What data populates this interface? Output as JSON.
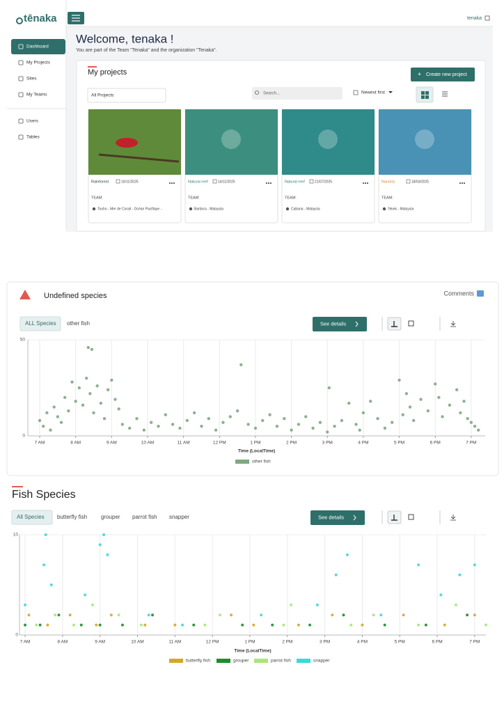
{
  "dashboard": {
    "logo": "tēnaka",
    "user": "tenaka",
    "nav": [
      "Dashboard",
      "My Projects",
      "Sites",
      "My Teams",
      "Users",
      "Tables"
    ],
    "welcome": "Welcome, tenaka !",
    "subtitle": "You are part of the Team \"Tenaka\" and the organization \"Tenaka\".",
    "section": "My projects",
    "create": "Create new project",
    "filter": "All Projects",
    "search": "Search...",
    "sort": "Newest first",
    "projects": [
      {
        "category": "Rainforest",
        "color": "#1f3b35",
        "date": "16/11/2025",
        "team": "TEAM:",
        "location": "Touho - Mer de Corail - Océan Pacifique -"
      },
      {
        "category": "Natural reef",
        "color": "#2f7d78",
        "date": "14/11/2025",
        "team": "TEAM:",
        "location": "Barbora - Malaysia"
      },
      {
        "category": "Natural reef",
        "color": "#2f7d78",
        "date": "21/07/2025",
        "team": "TEAM:",
        "location": "Cabana - Malaysia"
      },
      {
        "category": "Nursery",
        "color": "#e07b2a",
        "date": "18/03/2025",
        "team": "TEAM:",
        "location": "Tekek - Malaysia"
      }
    ]
  },
  "panels": [
    {
      "title": "Undefined species",
      "comments": "Comments",
      "filters": [
        "ALL Species",
        "other fish"
      ],
      "details": "See details"
    },
    {
      "title": "Fish Species",
      "filters": [
        "All Species",
        "butterfly fish",
        "grouper",
        "parrot fish",
        "snapper"
      ],
      "details": "See details"
    }
  ],
  "chart_data": [
    {
      "type": "scatter",
      "x_label": "Time (LocalTime)",
      "grid": true,
      "xlim": [
        6.67,
        19.39
      ],
      "xticks": [
        {
          "value": 7,
          "label": "7 AM"
        },
        {
          "value": 8,
          "label": "8 AM"
        },
        {
          "value": 9,
          "label": "9 AM"
        },
        {
          "value": 10,
          "label": "10 AM"
        },
        {
          "value": 11,
          "label": "11 AM"
        },
        {
          "value": 12,
          "label": "12 PM"
        },
        {
          "value": 13,
          "label": "1 PM"
        },
        {
          "value": 14,
          "label": "2 PM"
        },
        {
          "value": 15,
          "label": "3 PM"
        },
        {
          "value": 16,
          "label": "4 PM"
        },
        {
          "value": 17,
          "label": "5 PM"
        },
        {
          "value": 18,
          "label": "6 PM"
        },
        {
          "value": 19,
          "label": "7 PM"
        }
      ],
      "ylim": [
        0,
        50
      ],
      "yticks": [
        0,
        50
      ],
      "series": [
        {
          "name": "other fish",
          "color": "#7fa882",
          "x": [
            7.0,
            7.1,
            7.2,
            7.3,
            7.4,
            7.5,
            7.6,
            7.7,
            7.8,
            7.9,
            8.0,
            8.1,
            8.2,
            8.3,
            8.35,
            8.4,
            8.45,
            8.5,
            8.6,
            8.7,
            8.8,
            8.9,
            9.0,
            9.1,
            9.2,
            9.3,
            9.5,
            9.7,
            9.9,
            10.1,
            10.3,
            10.5,
            10.7,
            10.9,
            11.1,
            11.3,
            11.5,
            11.7,
            11.9,
            12.1,
            12.3,
            12.5,
            12.6,
            12.8,
            13.0,
            13.2,
            13.4,
            13.6,
            13.8,
            14.0,
            14.2,
            14.4,
            14.6,
            14.8,
            15.0,
            15.05,
            15.2,
            15.4,
            15.6,
            15.8,
            15.9,
            16.0,
            16.2,
            16.4,
            16.6,
            16.8,
            17.0,
            17.1,
            17.2,
            17.3,
            17.4,
            17.6,
            17.8,
            18.0,
            18.1,
            18.2,
            18.4,
            18.6,
            18.7,
            18.8,
            18.9,
            19.0,
            19.1,
            19.2
          ],
          "values": [
            8,
            5,
            12,
            3,
            15,
            10,
            7,
            20,
            13,
            28,
            18,
            25,
            16,
            30,
            46,
            22,
            45,
            12,
            26,
            17,
            9,
            24,
            29,
            19,
            14,
            6,
            4,
            9,
            3,
            7,
            5,
            11,
            6,
            4,
            8,
            12,
            5,
            9,
            3,
            7,
            10,
            13,
            37,
            6,
            4,
            8,
            11,
            5,
            9,
            3,
            6,
            10,
            4,
            7,
            2,
            25,
            5,
            8,
            17,
            6,
            3,
            12,
            18,
            9,
            4,
            7,
            29,
            11,
            22,
            15,
            8,
            19,
            13,
            27,
            20,
            10,
            16,
            24,
            12,
            18,
            9,
            7,
            5,
            3
          ]
        }
      ]
    },
    {
      "type": "scatter",
      "x_label": "Time (LocalTime)",
      "grid": true,
      "xlim": [
        6.85,
        19.3
      ],
      "xticks": [
        {
          "value": 7,
          "label": "7 AM"
        },
        {
          "value": 8,
          "label": "8 AM"
        },
        {
          "value": 9,
          "label": "9 AM"
        },
        {
          "value": 10,
          "label": "10 AM"
        },
        {
          "value": 11,
          "label": "11 AM"
        },
        {
          "value": 12,
          "label": "12 PM"
        },
        {
          "value": 13,
          "label": "1 PM"
        },
        {
          "value": 14,
          "label": "2 PM"
        },
        {
          "value": 15,
          "label": "3 PM"
        },
        {
          "value": 16,
          "label": "4 PM"
        },
        {
          "value": 17,
          "label": "5 PM"
        },
        {
          "value": 18,
          "label": "6 PM"
        },
        {
          "value": 19,
          "label": "7 PM"
        }
      ],
      "ylim": [
        0,
        10
      ],
      "yticks": [
        0,
        10
      ],
      "series": [
        {
          "name": "butterfly fish",
          "color": "#d4a72c",
          "x": [
            7.1,
            7.6,
            8.2,
            8.9,
            9.3,
            10.2,
            11.0,
            12.5,
            13.1,
            14.3,
            15.2,
            16.0,
            17.1,
            18.2,
            19.0
          ],
          "values": [
            2,
            1,
            2,
            1,
            2,
            1,
            1,
            2,
            1,
            1,
            2,
            1,
            2,
            1,
            2
          ]
        },
        {
          "name": "grouper",
          "color": "#1e8c2a",
          "x": [
            7.0,
            7.4,
            7.9,
            8.5,
            9.0,
            9.6,
            10.4,
            11.5,
            12.8,
            13.6,
            14.6,
            15.5,
            16.6,
            17.7,
            18.8
          ],
          "values": [
            1,
            1,
            2,
            1,
            1,
            1,
            2,
            1,
            1,
            1,
            1,
            2,
            1,
            1,
            2
          ]
        },
        {
          "name": "parrot fish",
          "color": "#a8e67a",
          "x": [
            7.3,
            7.8,
            8.3,
            8.8,
            9.5,
            10.1,
            11.8,
            12.2,
            13.9,
            14.1,
            15.7,
            16.3,
            17.5,
            18.5,
            19.3
          ],
          "values": [
            1,
            2,
            1,
            3,
            2,
            1,
            1,
            2,
            1,
            3,
            1,
            2,
            1,
            3,
            1
          ]
        },
        {
          "name": "snapper",
          "color": "#3dd8d8",
          "x": [
            7.0,
            7.5,
            7.55,
            7.7,
            8.6,
            9.0,
            9.1,
            9.2,
            10.3,
            11.2,
            13.3,
            14.8,
            15.3,
            15.6,
            16.5,
            17.5,
            18.1,
            18.6,
            19.0
          ],
          "values": [
            3,
            7,
            10,
            5,
            4,
            9,
            10,
            8,
            2,
            1,
            2,
            3,
            6,
            8,
            2,
            7,
            4,
            6,
            7
          ]
        }
      ]
    }
  ]
}
